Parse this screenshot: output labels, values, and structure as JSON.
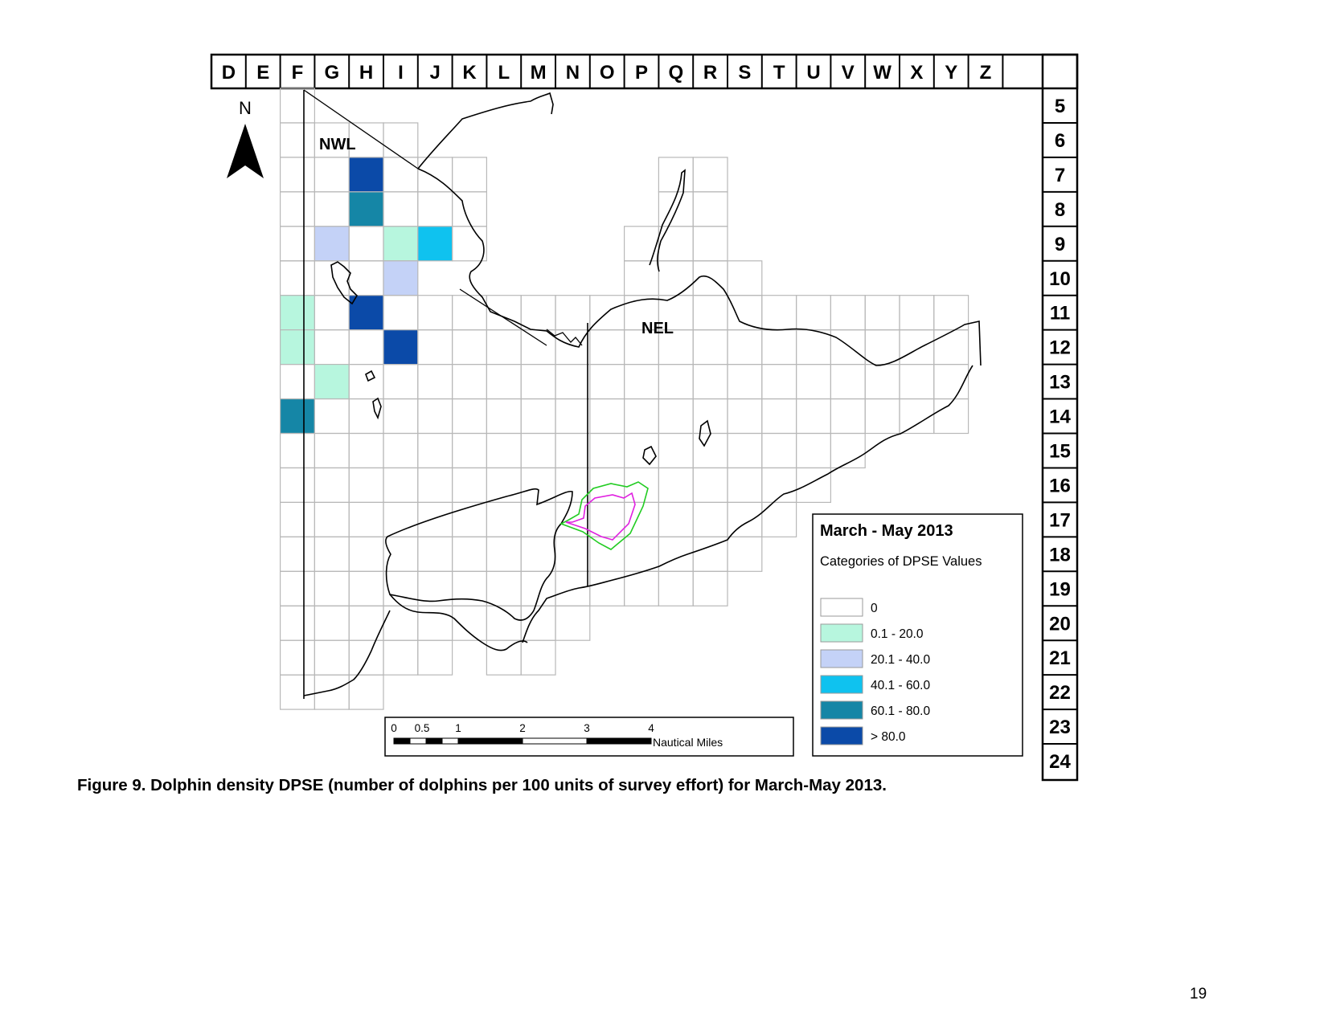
{
  "column_labels": [
    "D",
    "E",
    "F",
    "G",
    "H",
    "I",
    "J",
    "K",
    "L",
    "M",
    "N",
    "O",
    "P",
    "Q",
    "R",
    "S",
    "T",
    "U",
    "V",
    "W",
    "X",
    "Y",
    "Z"
  ],
  "row_labels": [
    "5",
    "6",
    "7",
    "8",
    "9",
    "10",
    "11",
    "12",
    "13",
    "14",
    "15",
    "16",
    "17",
    "18",
    "19",
    "20",
    "21",
    "22",
    "23",
    "24"
  ],
  "north_label": "N",
  "area_labels": {
    "nwl": "NWL",
    "nel": "NEL"
  },
  "legend": {
    "title": "March - May 2013",
    "subtitle": "Categories of DPSE Values",
    "items": [
      {
        "label": "0",
        "color": "#ffffff"
      },
      {
        "label": "0.1 - 20.0",
        "color": "#b7f6de"
      },
      {
        "label": "20.1 - 40.0",
        "color": "#c4d2f7"
      },
      {
        "label": "40.1 - 60.0",
        "color": "#0fc2ef"
      },
      {
        "label": "60.1 - 80.0",
        "color": "#1586a6"
      },
      {
        "label": "> 80.0",
        "color": "#0b4aa8"
      }
    ]
  },
  "scale_bar": {
    "ticks": [
      "0",
      "0.5",
      "1",
      "2",
      "3",
      "4"
    ],
    "unit": "Nautical Miles"
  },
  "colored_cells": [
    {
      "col": "H",
      "row": "7",
      "category": "> 80.0"
    },
    {
      "col": "H",
      "row": "8",
      "category": "60.1 - 80.0"
    },
    {
      "col": "G",
      "row": "9",
      "category": "20.1 - 40.0"
    },
    {
      "col": "I",
      "row": "9",
      "category": "0.1 - 20.0"
    },
    {
      "col": "J",
      "row": "9",
      "category": "40.1 - 60.0"
    },
    {
      "col": "I",
      "row": "10",
      "category": "20.1 - 40.0"
    },
    {
      "col": "F",
      "row": "11",
      "category": "0.1 - 20.0"
    },
    {
      "col": "H",
      "row": "11",
      "category": "> 80.0"
    },
    {
      "col": "F",
      "row": "12",
      "category": "0.1 - 20.0"
    },
    {
      "col": "I",
      "row": "12",
      "category": "> 80.0"
    },
    {
      "col": "G",
      "row": "13",
      "category": "0.1 - 20.0"
    },
    {
      "col": "F",
      "row": "14",
      "category": "60.1 - 80.0"
    }
  ],
  "caption": "Figure 9. Dolphin density DPSE (number of dolphins per 100 units of survey effort) for March-May 2013.",
  "page_number": "19"
}
